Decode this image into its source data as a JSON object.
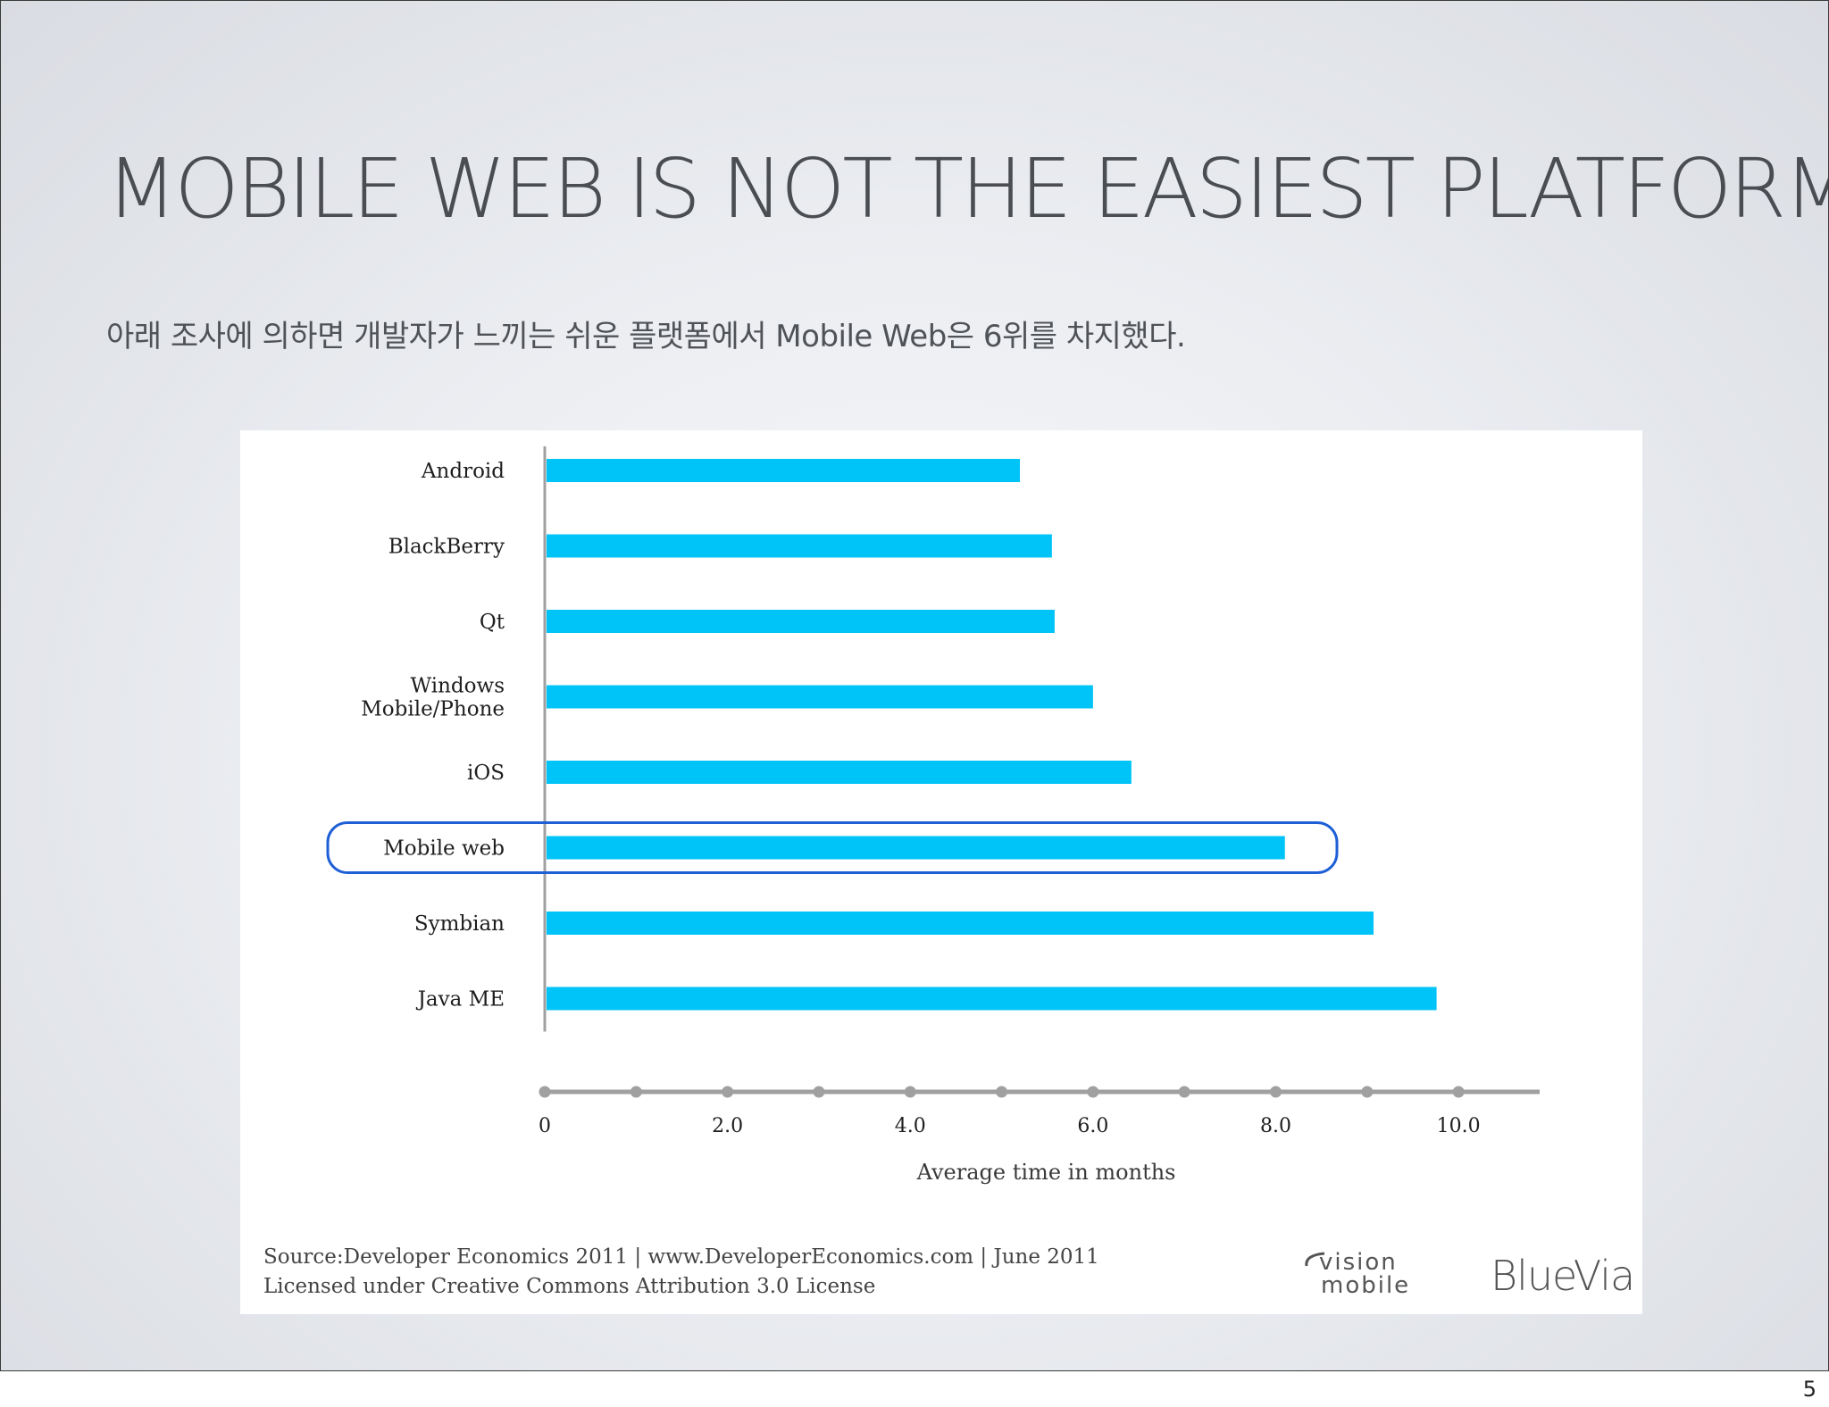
{
  "slide": {
    "title": "MOBILE WEB IS NOT THE EASIEST PLATFORM",
    "subtitle": "아래 조사에 의하면 개발자가 느끼는 쉬운 플랫폼에서 Mobile Web은 6위를 차지했다.",
    "page_number": "5"
  },
  "chart_data": {
    "type": "bar",
    "orientation": "horizontal",
    "categories": [
      "Android",
      "BlackBerry",
      "Qt",
      "Windows Mobile/Phone",
      "iOS",
      "Mobile web",
      "Symbian",
      "Java ME"
    ],
    "category_lines": [
      [
        "Android"
      ],
      [
        "BlackBerry"
      ],
      [
        "Qt"
      ],
      [
        "Windows",
        "Mobile/Phone"
      ],
      [
        "iOS"
      ],
      [
        "Mobile web"
      ],
      [
        "Symbian"
      ],
      [
        "Java ME"
      ]
    ],
    "values": [
      5.2,
      5.55,
      5.58,
      6.0,
      6.42,
      8.1,
      9.07,
      9.76
    ],
    "xlabel": "Average time in months",
    "ylabel": "",
    "xlim": [
      0,
      10.8
    ],
    "x_ticks": [
      {
        "value": 0,
        "label": "0"
      },
      {
        "value": 2,
        "label": "2.0"
      },
      {
        "value": 4,
        "label": "4.0"
      },
      {
        "value": 6,
        "label": "6.0"
      },
      {
        "value": 8,
        "label": "8.0"
      },
      {
        "value": 10,
        "label": "10.0"
      }
    ],
    "x_dots": [
      0,
      1,
      2,
      3,
      4,
      5,
      6,
      7,
      8,
      9,
      10
    ],
    "highlighted_category": "Mobile web",
    "bar_color": "#00c4f7",
    "highlight_color": "#1e5fd6",
    "axis_color": "#a0a0a0",
    "grid": false
  },
  "source": {
    "line1": "Source:Developer Economics 2011 | www.DeveloperEconomics.com | June 2011",
    "line2": "Licensed under Creative Commons Attribution 3.0 License"
  },
  "logos": {
    "vision_mobile_top": "vision",
    "vision_mobile_bottom": "mobile",
    "bluevia": "BlueVia"
  }
}
